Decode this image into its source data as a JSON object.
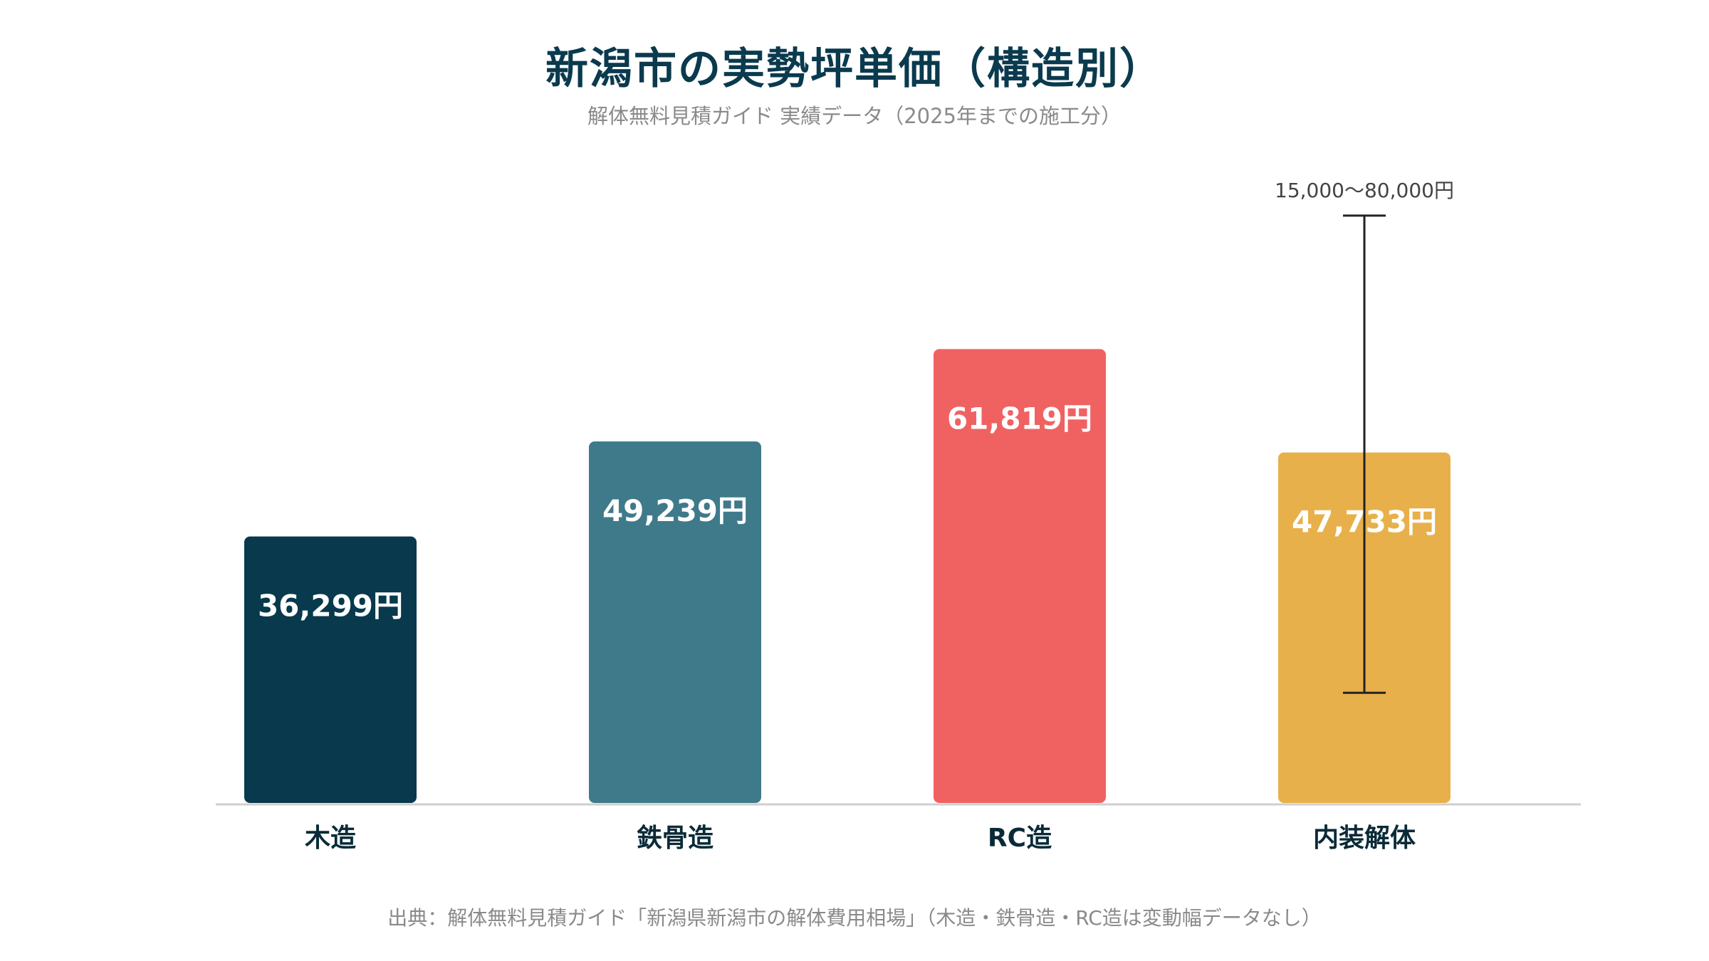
{
  "chart_data": {
    "type": "bar",
    "title": "新潟市の実勢坪単価（構造別）",
    "subtitle": "解体無料見積ガイド 実績データ（2025年までの施工分）",
    "categories": [
      "木造",
      "鉄骨造",
      "RC造",
      "内装解体"
    ],
    "values": [
      36299,
      49239,
      61819,
      47733
    ],
    "value_labels": [
      "36,299円",
      "49,239円",
      "61,819円",
      "47,733円"
    ],
    "colors": [
      "#08394d",
      "#3f7a8b",
      "#f06262",
      "#e8b04b"
    ],
    "error_range": {
      "category": "内装解体",
      "low": 15000,
      "high": 80000,
      "label": "15,000〜80,000円"
    },
    "ylim": [
      0,
      90000
    ],
    "grid": false,
    "legend": "none",
    "source": "出典：解体無料見積ガイド「新潟県新潟市の解体費用相場」（木造・鉄骨造・RC造は変動幅データなし）"
  }
}
